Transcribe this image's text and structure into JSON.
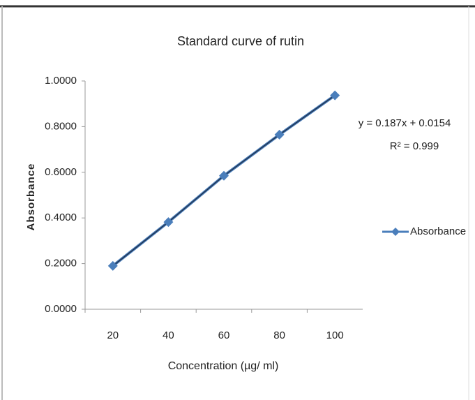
{
  "chart_data": {
    "type": "line",
    "title": "Standard curve of rutin",
    "x_label": "Concentration (µg/ ml)",
    "y_label": "Absorbance",
    "categories": [
      "20",
      "40",
      "60",
      "80",
      "100"
    ],
    "series": [
      {
        "name": "Absorbance",
        "color": "#4a7ebb",
        "values": [
          0.19,
          0.382,
          0.585,
          0.765,
          0.937
        ]
      }
    ],
    "ylim": [
      0,
      1
    ],
    "yticks": [
      {
        "value": 0,
        "label": "0.0000"
      },
      {
        "value": 0.2,
        "label": "0.2000"
      },
      {
        "value": 0.4,
        "label": "0.4000"
      },
      {
        "value": 0.6,
        "label": "0.6000"
      },
      {
        "value": 0.8,
        "label": "0.8000"
      },
      {
        "value": 1,
        "label": "1.0000"
      }
    ],
    "annotations": [
      "y = 0.187x + 0.0154",
      "R² = 0.999"
    ],
    "legend": "right"
  }
}
